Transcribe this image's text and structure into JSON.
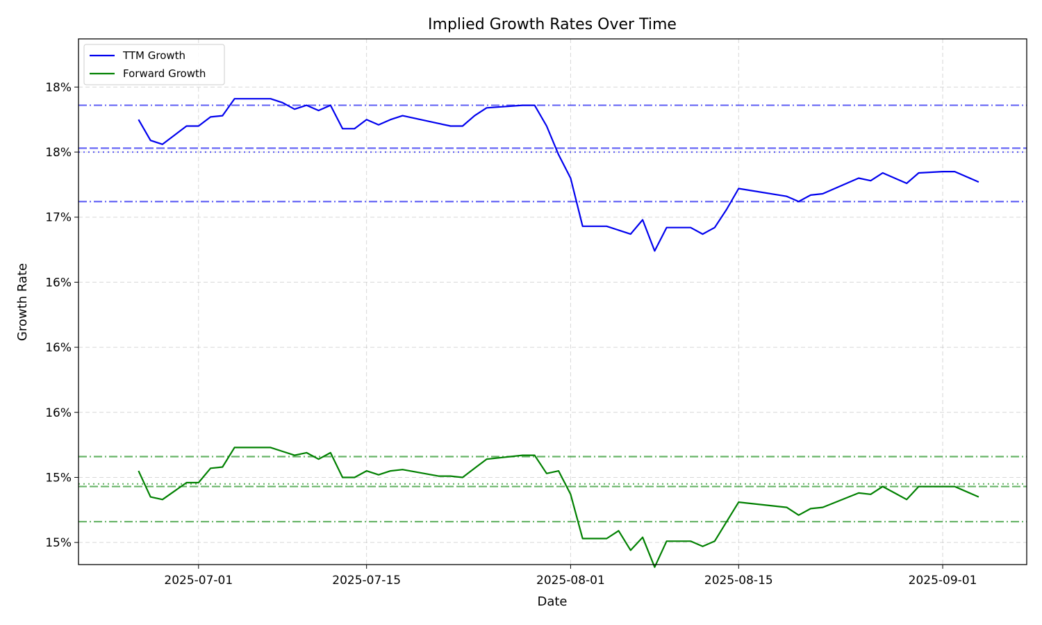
{
  "chart_data": {
    "type": "line",
    "title": "Implied Growth Rates Over Time",
    "xlabel": "Date",
    "ylabel": "Growth Rate",
    "xlim": [
      "2025-06-21",
      "2025-09-08"
    ],
    "ylim": [
      0.1433,
      0.1837
    ],
    "grid": true,
    "legend_position": "top-left",
    "x_ticks": [
      {
        "date": "2025-07-01",
        "label": "2025-07-01"
      },
      {
        "date": "2025-07-15",
        "label": "2025-07-15"
      },
      {
        "date": "2025-08-01",
        "label": "2025-08-01"
      },
      {
        "date": "2025-08-15",
        "label": "2025-08-15"
      },
      {
        "date": "2025-09-01",
        "label": "2025-09-01"
      }
    ],
    "y_ticks": [
      {
        "value": 0.145,
        "label": "15%"
      },
      {
        "value": 0.15,
        "label": "15%"
      },
      {
        "value": 0.155,
        "label": "16%"
      },
      {
        "value": 0.16,
        "label": "16%"
      },
      {
        "value": 0.165,
        "label": "16%"
      },
      {
        "value": 0.17,
        "label": "17%"
      },
      {
        "value": 0.175,
        "label": "18%"
      },
      {
        "value": 0.18,
        "label": "18%"
      }
    ],
    "x": [
      "2025-06-26",
      "2025-06-27",
      "2025-06-28",
      "2025-06-30",
      "2025-07-01",
      "2025-07-02",
      "2025-07-03",
      "2025-07-04",
      "2025-07-07",
      "2025-07-08",
      "2025-07-09",
      "2025-07-10",
      "2025-07-11",
      "2025-07-12",
      "2025-07-13",
      "2025-07-14",
      "2025-07-15",
      "2025-07-16",
      "2025-07-17",
      "2025-07-18",
      "2025-07-21",
      "2025-07-22",
      "2025-07-23",
      "2025-07-24",
      "2025-07-25",
      "2025-07-28",
      "2025-07-29",
      "2025-07-30",
      "2025-07-31",
      "2025-08-01",
      "2025-08-02",
      "2025-08-04",
      "2025-08-05",
      "2025-08-06",
      "2025-08-07",
      "2025-08-08",
      "2025-08-09",
      "2025-08-11",
      "2025-08-12",
      "2025-08-13",
      "2025-08-14",
      "2025-08-15",
      "2025-08-19",
      "2025-08-20",
      "2025-08-21",
      "2025-08-22",
      "2025-08-25",
      "2025-08-26",
      "2025-08-27",
      "2025-08-28",
      "2025-08-29",
      "2025-08-30",
      "2025-09-01",
      "2025-09-02",
      "2025-09-04"
    ],
    "series": [
      {
        "name": "TTM Growth",
        "color": "#0000ee",
        "values": [
          0.1775,
          0.1759,
          0.1756,
          0.177,
          0.177,
          0.1777,
          0.1778,
          0.1791,
          0.1791,
          0.1788,
          0.1783,
          0.1786,
          0.1782,
          0.1786,
          0.1768,
          0.1768,
          0.1775,
          0.1771,
          0.1775,
          0.1778,
          0.1772,
          0.177,
          0.177,
          0.1778,
          0.1784,
          0.1786,
          0.1786,
          0.177,
          0.1748,
          0.173,
          0.1693,
          0.1693,
          0.169,
          0.1687,
          0.1698,
          0.1674,
          0.1692,
          0.1692,
          0.1687,
          0.1692,
          0.1706,
          0.1722,
          0.1716,
          0.1712,
          0.1717,
          0.1718,
          0.173,
          0.1728,
          0.1734,
          0.173,
          0.1726,
          0.1734,
          0.1735,
          0.1735,
          0.1727
        ]
      },
      {
        "name": "Forward Growth",
        "color": "#008000",
        "values": [
          0.1505,
          0.1485,
          0.1483,
          0.1496,
          0.1496,
          0.1507,
          0.1508,
          0.1523,
          0.1523,
          0.152,
          0.1517,
          0.1519,
          0.1514,
          0.1519,
          0.15,
          0.15,
          0.1505,
          0.1502,
          0.1505,
          0.1506,
          0.1501,
          0.1501,
          0.15,
          0.1507,
          0.1514,
          0.1517,
          0.1517,
          0.1503,
          0.1505,
          0.1487,
          0.1453,
          0.1453,
          0.1459,
          0.1444,
          0.1454,
          0.1431,
          0.1451,
          0.1451,
          0.1447,
          0.1451,
          0.1466,
          0.1481,
          0.1477,
          0.1471,
          0.1476,
          0.1477,
          0.1488,
          0.1487,
          0.1493,
          0.1488,
          0.1483,
          0.1493,
          0.1493,
          0.1493,
          0.1485
        ]
      }
    ],
    "reference_lines": [
      {
        "series": "TTM Growth",
        "value": 0.1786,
        "style": "dashdot"
      },
      {
        "series": "TTM Growth",
        "value": 0.1753,
        "style": "dashed"
      },
      {
        "series": "TTM Growth",
        "value": 0.175,
        "style": "dotted"
      },
      {
        "series": "TTM Growth",
        "value": 0.1712,
        "style": "dashdot"
      },
      {
        "series": "Forward Growth",
        "value": 0.1516,
        "style": "dashdot"
      },
      {
        "series": "Forward Growth",
        "value": 0.1495,
        "style": "dotted"
      },
      {
        "series": "Forward Growth",
        "value": 0.1493,
        "style": "dashed"
      },
      {
        "series": "Forward Growth",
        "value": 0.1466,
        "style": "dashdot"
      }
    ]
  }
}
